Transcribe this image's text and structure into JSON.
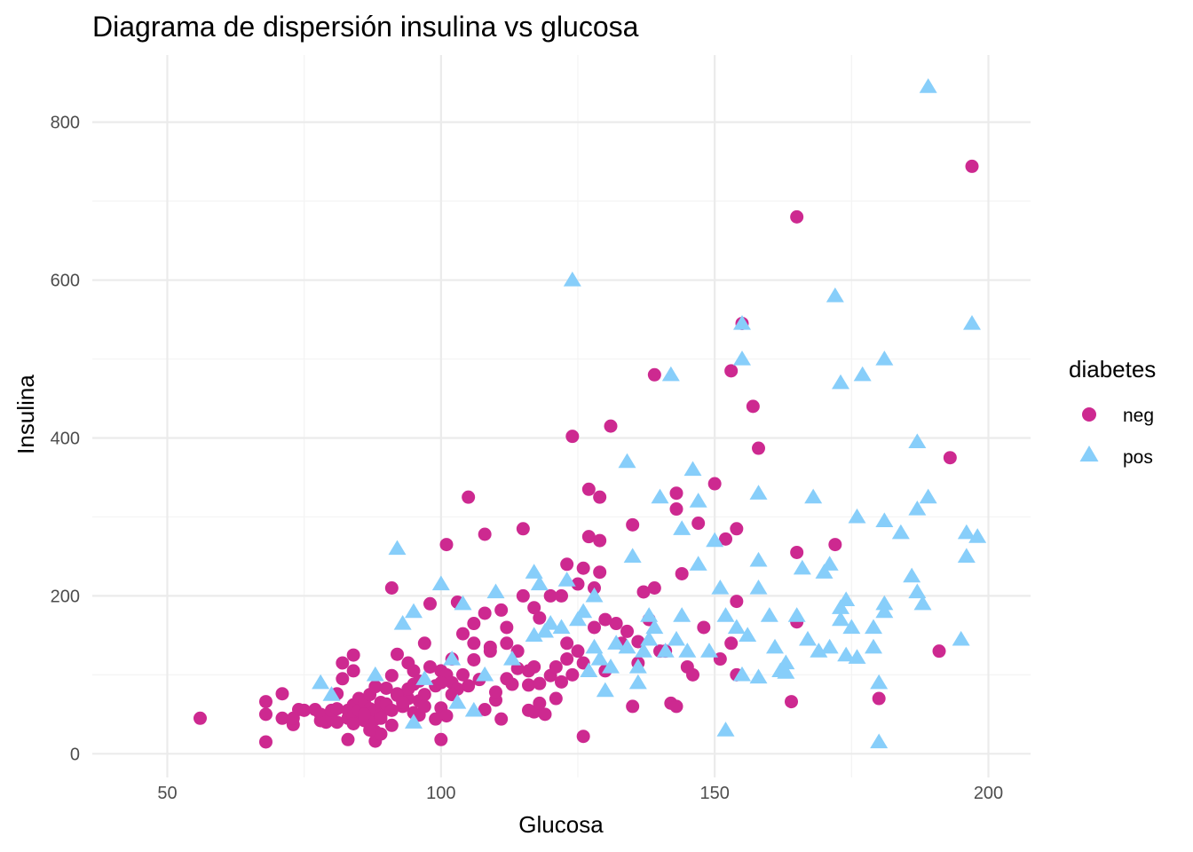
{
  "chart_data": {
    "type": "scatter",
    "title": "Diagrama de dispersión insulina vs glucosa",
    "xlabel": "Glucosa",
    "ylabel": "Insulina",
    "xlim": [
      36.3,
      207.7
    ],
    "ylim": [
      -30,
      885
    ],
    "x_ticks": [
      50,
      100,
      150,
      200
    ],
    "y_ticks": [
      0,
      200,
      400,
      600,
      800
    ],
    "grid": true,
    "legend": {
      "title": "diabetes",
      "position": "right"
    },
    "colors": {
      "neg": "#CD2990",
      "pos": "#87CEFA",
      "grid": "#ebebeb",
      "tick": "#4d4d4d"
    },
    "series": [
      {
        "name": "neg",
        "marker": "circle",
        "points": [
          [
            56,
            45
          ],
          [
            68,
            15
          ],
          [
            68,
            50
          ],
          [
            68,
            66
          ],
          [
            71,
            45
          ],
          [
            71,
            76
          ],
          [
            73,
            37
          ],
          [
            73,
            45
          ],
          [
            74,
            56
          ],
          [
            75,
            55
          ],
          [
            77,
            56
          ],
          [
            78,
            42
          ],
          [
            78,
            50
          ],
          [
            79,
            40
          ],
          [
            80,
            45
          ],
          [
            80,
            55
          ],
          [
            81,
            40
          ],
          [
            81,
            76
          ],
          [
            81,
            57
          ],
          [
            82,
            95
          ],
          [
            82,
            115
          ],
          [
            83,
            18
          ],
          [
            83,
            45
          ],
          [
            83,
            55
          ],
          [
            84,
            105
          ],
          [
            84,
            125
          ],
          [
            84,
            62
          ],
          [
            84,
            48
          ],
          [
            85,
            70
          ],
          [
            85,
            55
          ],
          [
            86,
            65
          ],
          [
            86,
            42
          ],
          [
            87,
            57
          ],
          [
            87,
            37
          ],
          [
            87,
            75
          ],
          [
            88,
            16
          ],
          [
            88,
            28
          ],
          [
            88,
            44
          ],
          [
            88,
            55
          ],
          [
            88,
            85
          ],
          [
            89,
            25
          ],
          [
            89,
            49
          ],
          [
            89,
            65
          ],
          [
            90,
            59
          ],
          [
            90,
            83
          ],
          [
            91,
            36
          ],
          [
            91,
            99
          ],
          [
            91,
            210
          ],
          [
            92,
            126
          ],
          [
            92,
            76
          ],
          [
            93,
            60
          ],
          [
            94,
            70
          ],
          [
            94,
            82
          ],
          [
            95,
            88
          ],
          [
            95,
            105
          ],
          [
            96,
            49
          ],
          [
            96,
            67
          ],
          [
            97,
            75
          ],
          [
            97,
            140
          ],
          [
            98,
            190
          ],
          [
            99,
            44
          ],
          [
            99,
            86
          ],
          [
            100,
            18
          ],
          [
            100,
            58
          ],
          [
            100,
            105
          ],
          [
            101,
            100
          ],
          [
            101,
            48
          ],
          [
            101,
            265
          ],
          [
            102,
            90
          ],
          [
            102,
            120
          ],
          [
            103,
            82
          ],
          [
            103,
            192
          ],
          [
            104,
            152
          ],
          [
            105,
            86
          ],
          [
            105,
            325
          ],
          [
            106,
            165
          ],
          [
            106,
            119
          ],
          [
            107,
            94
          ],
          [
            108,
            178
          ],
          [
            108,
            56
          ],
          [
            108,
            278
          ],
          [
            109,
            130
          ],
          [
            109,
            135
          ],
          [
            110,
            68
          ],
          [
            111,
            44
          ],
          [
            111,
            182
          ],
          [
            112,
            140
          ],
          [
            112,
            160
          ],
          [
            113,
            88
          ],
          [
            114,
            108
          ],
          [
            115,
            200
          ],
          [
            115,
            285
          ],
          [
            116,
            87
          ],
          [
            116,
            105
          ],
          [
            117,
            185
          ],
          [
            117,
            53
          ],
          [
            118,
            89
          ],
          [
            118,
            172
          ],
          [
            119,
            50
          ],
          [
            120,
            99
          ],
          [
            120,
            200
          ],
          [
            121,
            70
          ],
          [
            122,
            91
          ],
          [
            122,
            200
          ],
          [
            123,
            240
          ],
          [
            123,
            140
          ],
          [
            124,
            402
          ],
          [
            124,
            100
          ],
          [
            125,
            130
          ],
          [
            125,
            215
          ],
          [
            126,
            22
          ],
          [
            126,
            235
          ],
          [
            127,
            335
          ],
          [
            127,
            275
          ],
          [
            128,
            210
          ],
          [
            129,
            270
          ],
          [
            129,
            325
          ],
          [
            129,
            230
          ],
          [
            130,
            105
          ],
          [
            131,
            415
          ],
          [
            132,
            165
          ],
          [
            134,
            155
          ],
          [
            135,
            60
          ],
          [
            135,
            290
          ],
          [
            136,
            115
          ],
          [
            137,
            205
          ],
          [
            139,
            210
          ],
          [
            139,
            480
          ],
          [
            140,
            130
          ],
          [
            141,
            130
          ],
          [
            142,
            64
          ],
          [
            143,
            60
          ],
          [
            143,
            330
          ],
          [
            143,
            310
          ],
          [
            144,
            228
          ],
          [
            145,
            110
          ],
          [
            146,
            100
          ],
          [
            147,
            292
          ],
          [
            150,
            342
          ],
          [
            151,
            120
          ],
          [
            152,
            272
          ],
          [
            153,
            485
          ],
          [
            154,
            100
          ],
          [
            154,
            285
          ],
          [
            155,
            545
          ],
          [
            157,
            440
          ],
          [
            158,
            387
          ],
          [
            165,
            680
          ],
          [
            164,
            66
          ],
          [
            165,
            255
          ],
          [
            165,
            167
          ],
          [
            172,
            265
          ],
          [
            180,
            70
          ],
          [
            191,
            130
          ],
          [
            193,
            375
          ],
          [
            197,
            744
          ],
          [
            154,
            193
          ],
          [
            153,
            140
          ],
          [
            136,
            142
          ],
          [
            148,
            160
          ],
          [
            106,
            140
          ],
          [
            118,
            64
          ],
          [
            121,
            110
          ],
          [
            128,
            160
          ],
          [
            133,
            140
          ],
          [
            138,
            170
          ],
          [
            102,
            75
          ],
          [
            98,
            110
          ],
          [
            96,
            92
          ],
          [
            94,
            115
          ],
          [
            92,
            74
          ],
          [
            90,
            63
          ],
          [
            86,
            50
          ],
          [
            84,
            38
          ],
          [
            110,
            78
          ],
          [
            114,
            130
          ],
          [
            117,
            110
          ],
          [
            123,
            120
          ],
          [
            126,
            115
          ],
          [
            130,
            170
          ],
          [
            116,
            55
          ],
          [
            112,
            95
          ],
          [
            104,
            100
          ],
          [
            100,
            90
          ],
          [
            97,
            60
          ],
          [
            95,
            52
          ],
          [
            93,
            65
          ],
          [
            91,
            55
          ],
          [
            89,
            45
          ],
          [
            87,
            30
          ]
        ]
      },
      {
        "name": "pos",
        "marker": "triangle",
        "points": [
          [
            78,
            90
          ],
          [
            80,
            75
          ],
          [
            88,
            100
          ],
          [
            92,
            260
          ],
          [
            93,
            165
          ],
          [
            95,
            40
          ],
          [
            95,
            180
          ],
          [
            97,
            95
          ],
          [
            100,
            215
          ],
          [
            102,
            120
          ],
          [
            103,
            65
          ],
          [
            104,
            190
          ],
          [
            106,
            55
          ],
          [
            108,
            100
          ],
          [
            110,
            205
          ],
          [
            113,
            120
          ],
          [
            117,
            150
          ],
          [
            117,
            230
          ],
          [
            118,
            215
          ],
          [
            119,
            155
          ],
          [
            120,
            165
          ],
          [
            122,
            160
          ],
          [
            123,
            220
          ],
          [
            124,
            600
          ],
          [
            125,
            170
          ],
          [
            126,
            180
          ],
          [
            127,
            105
          ],
          [
            128,
            135
          ],
          [
            128,
            200
          ],
          [
            129,
            120
          ],
          [
            130,
            80
          ],
          [
            131,
            110
          ],
          [
            132,
            140
          ],
          [
            134,
            135
          ],
          [
            134,
            370
          ],
          [
            135,
            250
          ],
          [
            136,
            110
          ],
          [
            136,
            90
          ],
          [
            137,
            130
          ],
          [
            138,
            145
          ],
          [
            138,
            175
          ],
          [
            139,
            160
          ],
          [
            140,
            325
          ],
          [
            141,
            130
          ],
          [
            142,
            480
          ],
          [
            143,
            145
          ],
          [
            144,
            285
          ],
          [
            144,
            175
          ],
          [
            145,
            130
          ],
          [
            146,
            360
          ],
          [
            147,
            320
          ],
          [
            147,
            240
          ],
          [
            149,
            130
          ],
          [
            150,
            270
          ],
          [
            151,
            210
          ],
          [
            152,
            30
          ],
          [
            152,
            175
          ],
          [
            154,
            160
          ],
          [
            155,
            100
          ],
          [
            155,
            500
          ],
          [
            155,
            545
          ],
          [
            156,
            150
          ],
          [
            158,
            245
          ],
          [
            158,
            210
          ],
          [
            158,
            330
          ],
          [
            160,
            175
          ],
          [
            161,
            135
          ],
          [
            162,
            105
          ],
          [
            163,
            115
          ],
          [
            165,
            175
          ],
          [
            166,
            235
          ],
          [
            167,
            145
          ],
          [
            168,
            325
          ],
          [
            169,
            130
          ],
          [
            170,
            230
          ],
          [
            171,
            135
          ],
          [
            171,
            240
          ],
          [
            173,
            185
          ],
          [
            173,
            470
          ],
          [
            174,
            195
          ],
          [
            174,
            125
          ],
          [
            175,
            160
          ],
          [
            176,
            300
          ],
          [
            177,
            480
          ],
          [
            179,
            160
          ],
          [
            179,
            135
          ],
          [
            180,
            15
          ],
          [
            180,
            90
          ],
          [
            181,
            295
          ],
          [
            181,
            500
          ],
          [
            181,
            190
          ],
          [
            181,
            180
          ],
          [
            184,
            280
          ],
          [
            186,
            225
          ],
          [
            187,
            310
          ],
          [
            187,
            395
          ],
          [
            187,
            205
          ],
          [
            188,
            190
          ],
          [
            189,
            325
          ],
          [
            189,
            845
          ],
          [
            195,
            145
          ],
          [
            196,
            280
          ],
          [
            196,
            250
          ],
          [
            197,
            545
          ],
          [
            198,
            275
          ],
          [
            172,
            580
          ],
          [
            173,
            170
          ],
          [
            176,
            122
          ],
          [
            163,
            103
          ],
          [
            158,
            97
          ]
        ]
      }
    ]
  }
}
